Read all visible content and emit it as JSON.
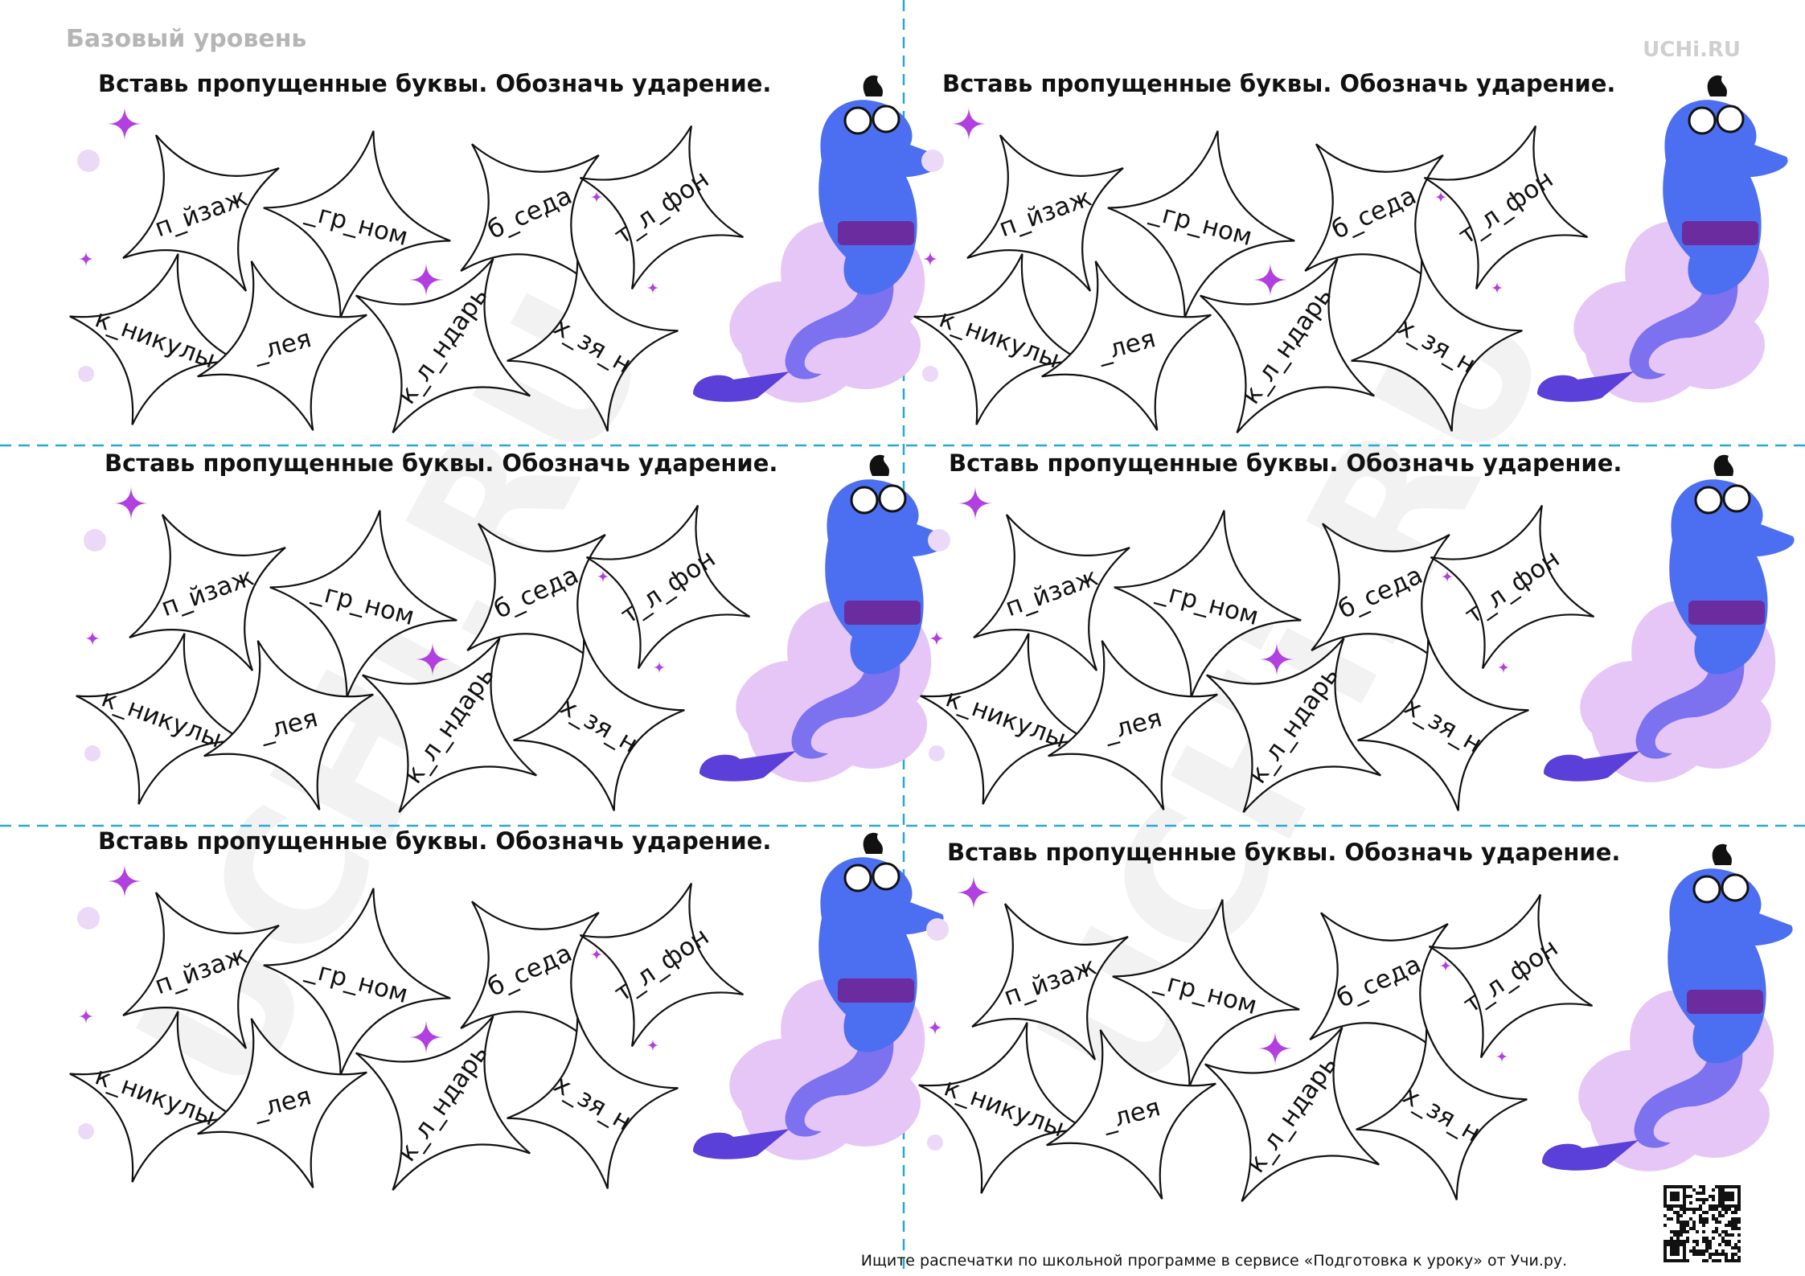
{
  "header": {
    "level": "Базовый уровень",
    "logo": "UCHi.RU"
  },
  "watermark": "UCHi.RU",
  "cards": [
    {
      "title": "Вставь пропущенные буквы. Обозначь ударение.",
      "words": [
        "п_йзаж",
        "_гр_ном",
        "б_седа",
        "т_л_фон",
        "к_никулы",
        "_лея",
        "к_л_ндарь",
        "х_зя_н"
      ]
    },
    {
      "title": "Вставь пропущенные буквы. Обозначь ударение.",
      "words": [
        "п_йзаж",
        "_гр_ном",
        "б_седа",
        "т_л_фон",
        "к_никулы",
        "_лея",
        "к_л_ндарь",
        "х_зя_н"
      ]
    },
    {
      "title": "Вставь пропущенные буквы. Обозначь ударение.",
      "words": [
        "п_йзаж",
        "_гр_ном",
        "б_седа",
        "т_л_фон",
        "к_никулы",
        "_лея",
        "к_л_ндарь",
        "х_зя_н"
      ]
    },
    {
      "title": "Вставь пропущенные буквы. Обозначь ударение.",
      "words": [
        "п_йзаж",
        "_гр_ном",
        "б_седа",
        "т_л_фон",
        "к_никулы",
        "_лея",
        "к_л_ндарь",
        "х_зя_н"
      ]
    },
    {
      "title": "Вставь пропущенные буквы. Обозначь ударение.",
      "words": [
        "п_йзаж",
        "_гр_ном",
        "б_седа",
        "т_л_фон",
        "к_никулы",
        "_лея",
        "к_л_ндарь",
        "х_зя_н"
      ]
    },
    {
      "title": "Вставь пропущенные буквы. Обозначь ударение.",
      "words": [
        "п_йзаж",
        "_гр_ном",
        "б_седа",
        "т_л_фон",
        "к_никулы",
        "_лея",
        "к_л_ндарь",
        "х_зя_н"
      ]
    }
  ],
  "footer": {
    "text": "Ищите распечатки по школьной программе в сервисе «Подготовка к уроку» от Учи.ру."
  }
}
